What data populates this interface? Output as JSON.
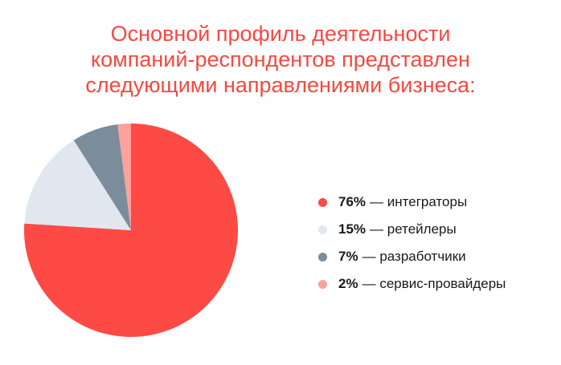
{
  "title_lines": [
    "Основной профиль деятельности",
    "компаний-респондентов представлен",
    "следующими направлениями бизнеса:"
  ],
  "chart_data": {
    "type": "pie",
    "title": "Основной профиль деятельности компаний-респондентов представлен следующими направлениями бизнеса:",
    "slices": [
      {
        "label": "интеграторы",
        "value": 76,
        "pct_label": "76%",
        "color": "#fe4a44"
      },
      {
        "label": "ретейлеры",
        "value": 15,
        "pct_label": "15%",
        "color": "#e1e7ee"
      },
      {
        "label": "разработчики",
        "value": 7,
        "pct_label": "7%",
        "color": "#7b8d9b"
      },
      {
        "label": "сервис-провайдеры",
        "value": 2,
        "pct_label": "2%",
        "color": "#fea19c"
      }
    ],
    "legend_position": "right",
    "separator": "—"
  }
}
